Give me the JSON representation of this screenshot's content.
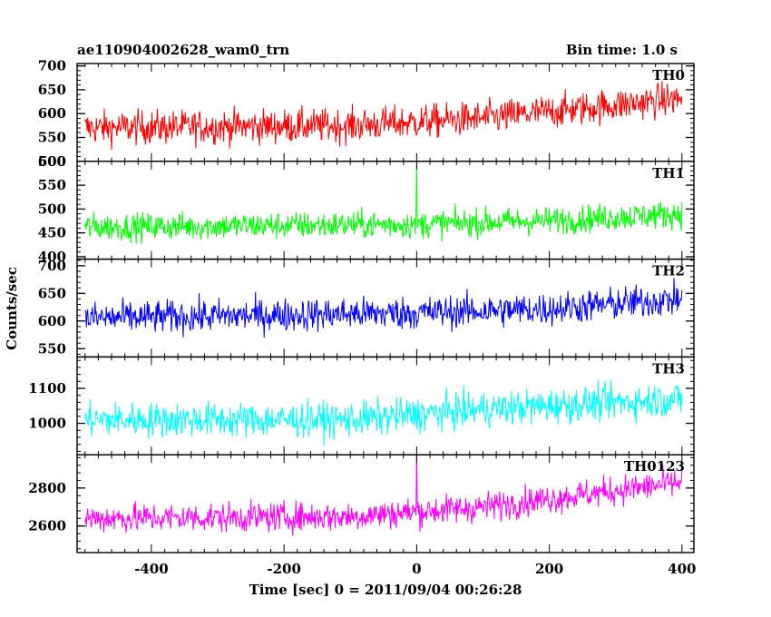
{
  "chart_data": {
    "type": "line",
    "title_left": "ae110904002628_wam0_trn",
    "title_right": "Bin time: 1.0 s",
    "xlabel": "Time [sec] 0 = 2011/09/04 00:26:28",
    "ylabel": "Counts/sec",
    "xlim": [
      -512,
      418
    ],
    "x_ticks": [
      -400,
      -200,
      0,
      200,
      400
    ],
    "x_range": [
      -500,
      400
    ],
    "bin_time": 1.0,
    "panels": [
      {
        "name": "TH0",
        "color": "#ff0000",
        "ylim": [
          500,
          705
        ],
        "y_ticks": [
          500,
          550,
          600,
          650,
          700
        ],
        "trend": [
          [
            -500,
            570
          ],
          [
            -100,
            575
          ],
          [
            100,
            590
          ],
          [
            400,
            632
          ]
        ],
        "amplitude": 32,
        "spikes": []
      },
      {
        "name": "TH1",
        "color": "#00ff00",
        "ylim": [
          395,
          600
        ],
        "y_ticks": [
          400,
          450,
          500,
          550,
          600
        ],
        "trend": [
          [
            -500,
            462
          ],
          [
            0,
            468
          ],
          [
            200,
            476
          ],
          [
            400,
            490
          ]
        ],
        "amplitude": 26,
        "spikes": [
          [
            0,
            598
          ]
        ]
      },
      {
        "name": "TH2",
        "color": "#0000ff",
        "ylim": [
          535,
          712
        ],
        "y_ticks": [
          550,
          600,
          650,
          700
        ],
        "trend": [
          [
            -500,
            605
          ],
          [
            0,
            615
          ],
          [
            200,
            622
          ],
          [
            400,
            640
          ]
        ],
        "amplitude": 27,
        "spikes": []
      },
      {
        "name": "TH3",
        "color": "#00ffff",
        "ylim": [
          910,
          1190
        ],
        "y_ticks": [
          1000,
          1100
        ],
        "trend": [
          [
            -500,
            1010
          ],
          [
            -100,
            1010
          ],
          [
            100,
            1040
          ],
          [
            400,
            1070
          ]
        ],
        "amplitude": 45,
        "spikes": []
      },
      {
        "name": "TH0123",
        "color": "#ff00ff",
        "ylim": [
          2460,
          2975
        ],
        "y_ticks": [
          2600,
          2800
        ],
        "trend": [
          [
            -500,
            2640
          ],
          [
            -100,
            2650
          ],
          [
            100,
            2700
          ],
          [
            400,
            2830
          ]
        ],
        "amplitude": 70,
        "spikes": [
          [
            0,
            2990
          ]
        ]
      }
    ]
  }
}
